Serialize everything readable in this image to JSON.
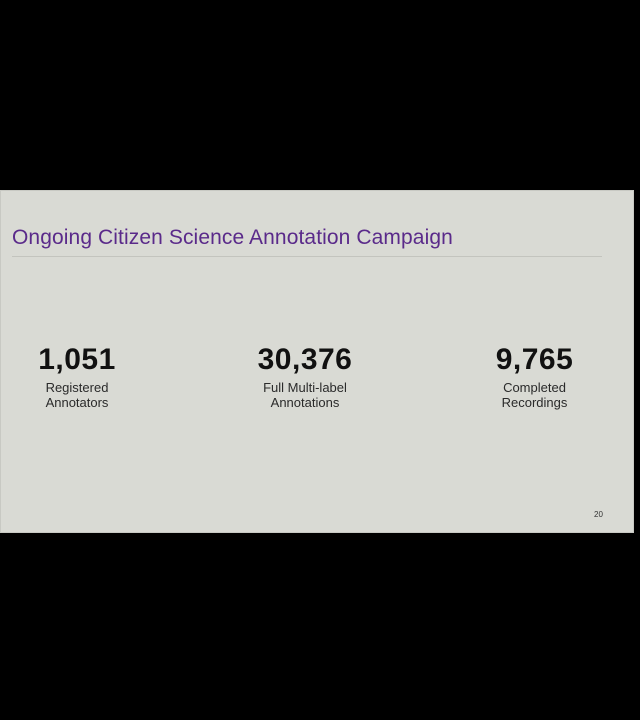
{
  "slide": {
    "title": "Ongoing Citizen Science Annotation Campaign",
    "stats": [
      {
        "value": "1,051",
        "label_line1": "Registered",
        "label_line2": "Annotators"
      },
      {
        "value": "30,376",
        "label_line1": "Full Multi-label",
        "label_line2": "Annotations"
      },
      {
        "value": "9,765",
        "label_line1": "Completed",
        "label_line2": "Recordings"
      }
    ],
    "page_number": "20"
  },
  "colors": {
    "background": "#000000",
    "slide_background": "#d9dad4",
    "title_color": "#5a2a8a",
    "stat_text": "#111111"
  }
}
